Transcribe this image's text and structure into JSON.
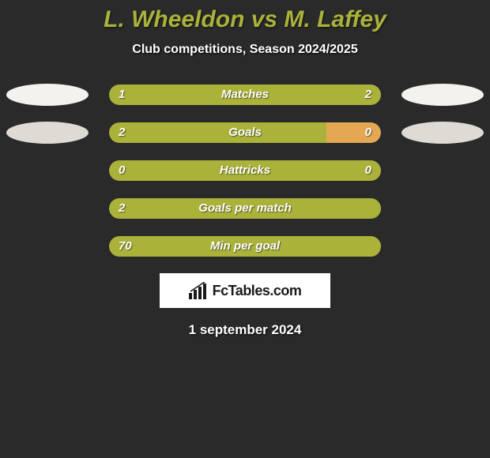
{
  "title": "L. Wheeldon vs M. Laffey",
  "subtitle": "Club competitions, Season 2024/2025",
  "date": "1 september 2024",
  "branding": "FcTables.com",
  "colors": {
    "background": "#2a2a2a",
    "accent": "#aab23a",
    "barTrack": "#555555",
    "text": "#ffffff",
    "ellipseLight": "#f3f2ee",
    "ellipseGrey": "#dedbd5"
  },
  "stats": [
    {
      "label": "Matches",
      "leftValue": "1",
      "rightValue": "2",
      "leftPct": 33,
      "rightPct": 67,
      "leftColor": "#aab23a",
      "rightColor": "#aab23a",
      "showEllipses": true,
      "ellipseLeftColor": "#f3f2ee",
      "ellipseRightColor": "#f3f2ee"
    },
    {
      "label": "Goals",
      "leftValue": "2",
      "rightValue": "0",
      "leftPct": 80,
      "rightPct": 20,
      "leftColor": "#aab23a",
      "rightColor": "#e4a853",
      "showEllipses": true,
      "ellipseLeftColor": "#dedbd5",
      "ellipseRightColor": "#dedbd5"
    },
    {
      "label": "Hattricks",
      "leftValue": "0",
      "rightValue": "0",
      "leftPct": 100,
      "rightPct": 0,
      "leftColor": "#aab23a",
      "rightColor": "#aab23a",
      "showEllipses": false
    },
    {
      "label": "Goals per match",
      "leftValue": "2",
      "rightValue": "",
      "leftPct": 100,
      "rightPct": 0,
      "leftColor": "#aab23a",
      "rightColor": "#aab23a",
      "showEllipses": false
    },
    {
      "label": "Min per goal",
      "leftValue": "70",
      "rightValue": "",
      "leftPct": 100,
      "rightPct": 0,
      "leftColor": "#aab23a",
      "rightColor": "#aab23a",
      "showEllipses": false
    }
  ]
}
